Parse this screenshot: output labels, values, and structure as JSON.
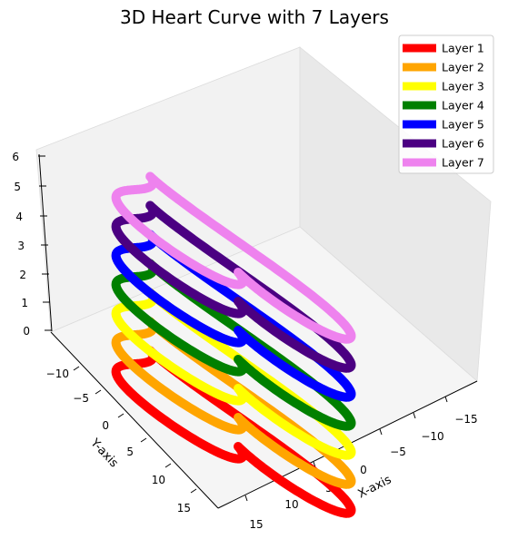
{
  "chart_data": {
    "type": "line",
    "title": "3D Heart Curve with 7 Layers",
    "xlabel": "X-axis",
    "ylabel": "Y-axis",
    "zlabel": "",
    "x_ticks": [
      "15",
      "10",
      "5",
      "0",
      "−5",
      "−10",
      "−15"
    ],
    "y_ticks": [
      "−10",
      "−5",
      "0",
      "5",
      "10",
      "15"
    ],
    "z_ticks": [
      "0",
      "1",
      "2",
      "3",
      "4",
      "5",
      "6"
    ],
    "xlim": [
      -17,
      17
    ],
    "ylim": [
      -13,
      17
    ],
    "zlim": [
      0,
      6
    ],
    "legend_position": "top-right",
    "grid": false,
    "curve": {
      "parametric_x": "16 sin^3(t)",
      "parametric_y": "13 cos(t) - 5 cos(2t) - 2 cos(3t) - cos(4t)",
      "t_range": [
        0,
        6.283185307
      ]
    },
    "series": [
      {
        "name": "Layer 1",
        "z": 0,
        "color": "#ff0000"
      },
      {
        "name": "Layer 2",
        "z": 1,
        "color": "#ffa500"
      },
      {
        "name": "Layer 3",
        "z": 2,
        "color": "#ffff00"
      },
      {
        "name": "Layer 4",
        "z": 3,
        "color": "#008000"
      },
      {
        "name": "Layer 5",
        "z": 4,
        "color": "#0000ff"
      },
      {
        "name": "Layer 6",
        "z": 5,
        "color": "#4b0082"
      },
      {
        "name": "Layer 7",
        "z": 6,
        "color": "#ee82ee"
      }
    ]
  }
}
